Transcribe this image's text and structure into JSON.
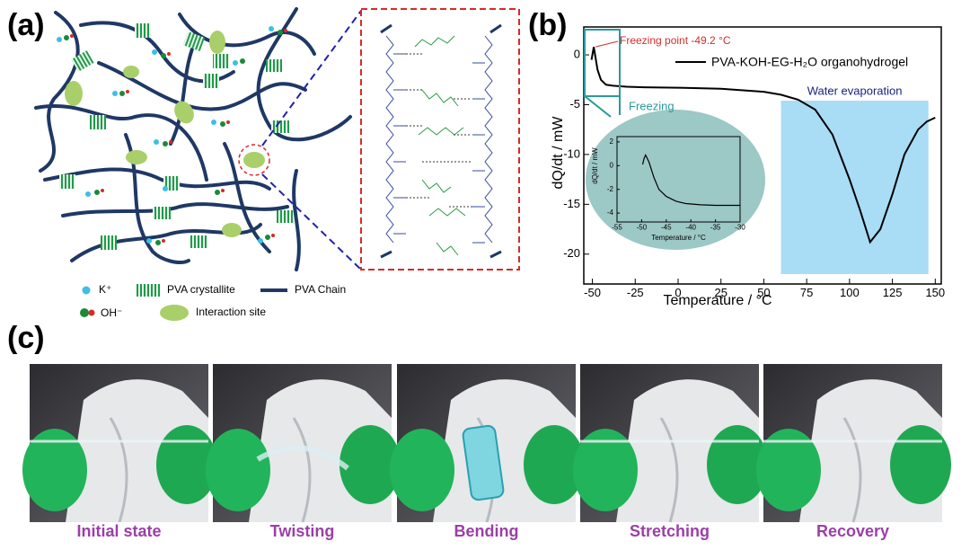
{
  "panels": {
    "a": {
      "label": "(a)",
      "legend": [
        "K⁺",
        "PVA crystallite",
        "PVA Chain",
        "OH⁻",
        "Interaction site"
      ]
    },
    "b": {
      "label": "(b)"
    },
    "c": {
      "label": "(c)",
      "captions": [
        "Initial state",
        "Twisting",
        "Bending",
        "Stretching",
        "Recovery"
      ]
    }
  },
  "chart_data": [
    {
      "type": "line",
      "xlabel": "Temperature / °C",
      "ylabel": "dQ/dt / mW",
      "annotation": "Freezing point -49.2 °C",
      "inset_label": "Freezing",
      "region_label": "Water evaporation",
      "region": {
        "x": [
          60,
          146
        ],
        "y": [
          -22,
          -4.6
        ]
      },
      "xlim": [
        -55,
        153.5
      ],
      "ylim": [
        -23,
        2.8
      ],
      "xticks": [
        -50,
        -25,
        0,
        25,
        50,
        75,
        100,
        125,
        150
      ],
      "yticks": [
        0,
        -5,
        -10,
        -15,
        -20
      ],
      "x": [
        -50.5,
        -49.2,
        -47,
        -45,
        -42,
        -38,
        -30,
        -20,
        0,
        25,
        50,
        60,
        70,
        80,
        90,
        100,
        106,
        112,
        118,
        125,
        132,
        140,
        145,
        150
      ],
      "series": [
        {
          "name": "PVA-KOH-EG-H₂O organohydrogel",
          "color": "#000000",
          "values": [
            -0.5,
            0.8,
            -1.5,
            -2.5,
            -3.0,
            -3.1,
            -3.2,
            -3.25,
            -3.3,
            -3.4,
            -3.7,
            -4.0,
            -4.5,
            -5.5,
            -8,
            -12.5,
            -15.5,
            -18.8,
            -17.5,
            -14,
            -10,
            -7.5,
            -6.7,
            -6.3
          ]
        }
      ]
    },
    {
      "type": "line",
      "xlabel": "Temperature / °C",
      "ylabel": "dQ/dt / mW",
      "xlim": [
        -55,
        -30
      ],
      "ylim": [
        -4.75,
        2.45
      ],
      "xticks": [
        -55,
        -50,
        -45,
        -40,
        -35,
        -30
      ],
      "yticks": [
        2,
        0,
        -2,
        -4
      ],
      "x": [
        -49.8,
        -49.5,
        -49.2,
        -48.5,
        -47.5,
        -46.5,
        -45,
        -43,
        -41,
        -38,
        -35,
        -30
      ],
      "series": [
        {
          "name": null,
          "color": "#000000",
          "values": [
            0.1,
            0.6,
            0.9,
            0.3,
            -1.0,
            -2.0,
            -2.6,
            -3.0,
            -3.2,
            -3.3,
            -3.35,
            -3.35
          ]
        }
      ]
    }
  ]
}
